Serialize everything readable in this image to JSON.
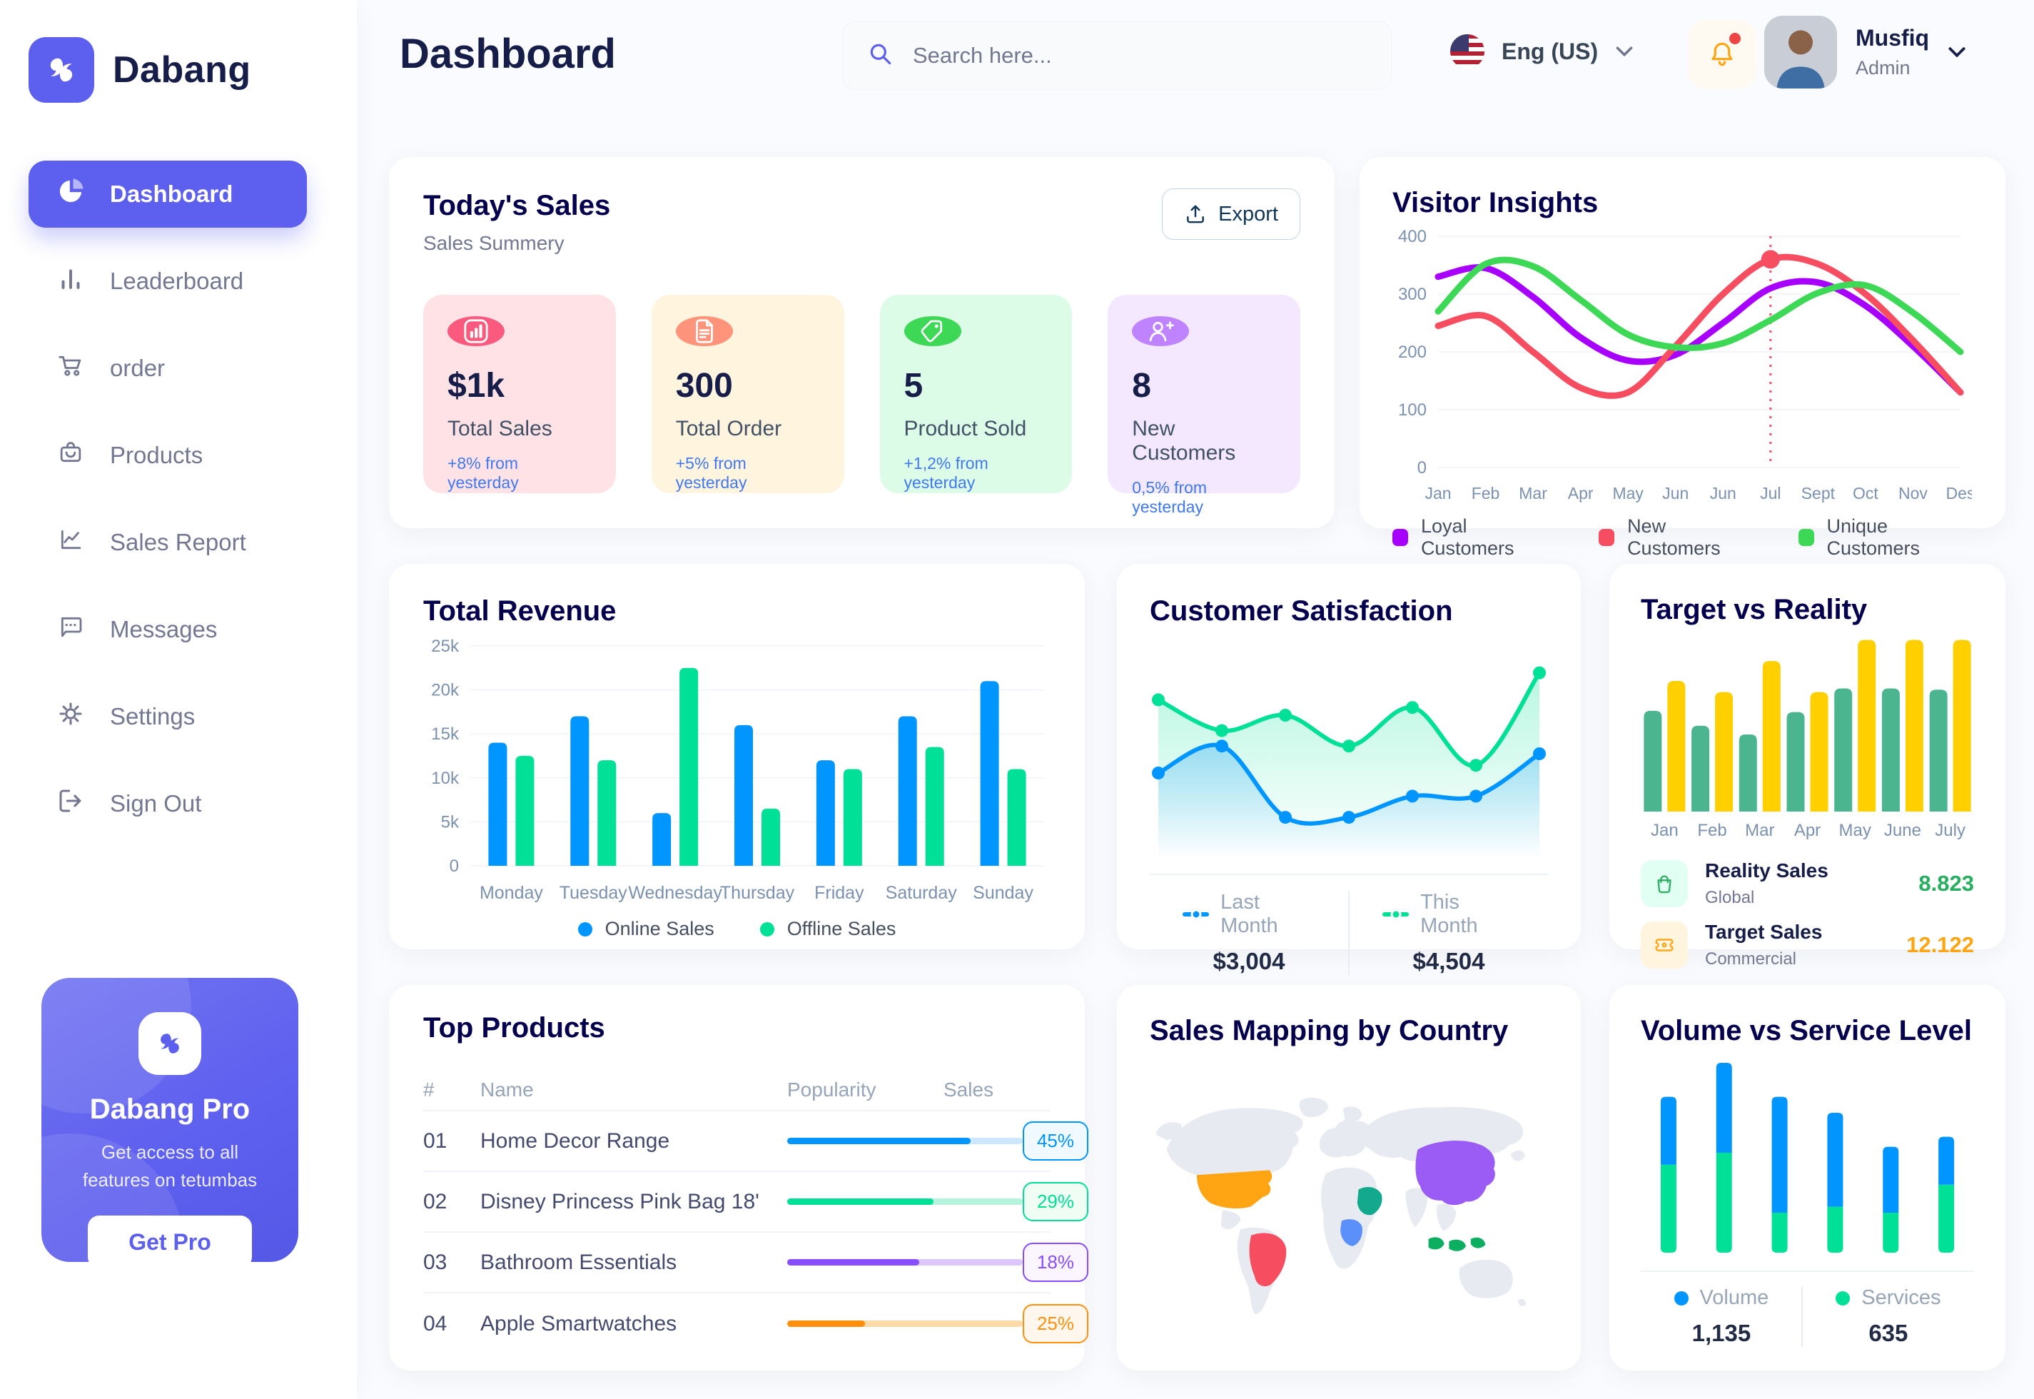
{
  "brand": {
    "logo_text": "Dabang"
  },
  "header": {
    "title": "Dashboard",
    "search_placeholder": "Search here...",
    "language": "Eng (US)",
    "user_name": "Musfiq",
    "user_role": "Admin"
  },
  "sidebar": {
    "items": [
      {
        "label": "Dashboard",
        "icon": "pie-chart-icon",
        "active": true
      },
      {
        "label": "Leaderboard",
        "icon": "bar-chart-icon",
        "active": false
      },
      {
        "label": "order",
        "icon": "cart-icon",
        "active": false
      },
      {
        "label": "Products",
        "icon": "bag-icon",
        "active": false
      },
      {
        "label": "Sales Report",
        "icon": "line-chart-icon",
        "active": false
      },
      {
        "label": "Messages",
        "icon": "message-icon",
        "active": false
      },
      {
        "label": "Settings",
        "icon": "gear-icon",
        "active": false
      },
      {
        "label": "Sign Out",
        "icon": "sign-out-icon",
        "active": false
      }
    ],
    "pro": {
      "title": "Dabang Pro",
      "subtitle": "Get access to all features on tetumbas",
      "button": "Get Pro"
    }
  },
  "todays_sales": {
    "title": "Today's Sales",
    "subtitle": "Sales Summery",
    "export_label": "Export",
    "stats": [
      {
        "value": "$1k",
        "label": "Total Sales",
        "delta": "+8% from yesterday",
        "bg": "#FFE2E5",
        "accent": "#FA5A7D",
        "icon": "chart-icon"
      },
      {
        "value": "300",
        "label": "Total Order",
        "delta": "+5% from yesterday",
        "bg": "#FFF4DE",
        "accent": "#FF947A",
        "icon": "order-icon"
      },
      {
        "value": "5",
        "label": "Product Sold",
        "delta": "+1,2% from yesterday",
        "bg": "#DCFCE7",
        "accent": "#3CD856",
        "icon": "tag-icon"
      },
      {
        "value": "8",
        "label": "New Customers",
        "delta": "0,5% from yesterday",
        "bg": "#F3E8FF",
        "accent": "#BF83FF",
        "icon": "user-plus-icon"
      }
    ]
  },
  "top_products": {
    "title": "Top Products",
    "columns": [
      "#",
      "Name",
      "Popularity",
      "Sales"
    ],
    "rows": [
      {
        "num": "01",
        "name": "Home Decor Range",
        "progress": 78,
        "sales": "45%",
        "color": "#0095FF",
        "track": "#CDE7FF",
        "badge_bg": "#F0F9FF"
      },
      {
        "num": "02",
        "name": "Disney Princess Pink Bag 18'",
        "progress": 62,
        "sales": "29%",
        "color": "#00E096",
        "track": "#B5F3DC",
        "badge_bg": "#F0FDF4"
      },
      {
        "num": "03",
        "name": "Bathroom Essentials",
        "progress": 56,
        "sales": "18%",
        "color": "#884DFF",
        "track": "#DCC8FF",
        "badge_bg": "#FAF5FF"
      },
      {
        "num": "04",
        "name": "Apple Smartwatches",
        "progress": 33,
        "sales": "25%",
        "color": "#FF8F0D",
        "track": "#FFD9A6",
        "badge_bg": "#FFF7ED"
      }
    ]
  },
  "chart_data": [
    {
      "id": "visitor_insights",
      "type": "line",
      "title": "Visitor Insights",
      "x": [
        "Jan",
        "Feb",
        "Mar",
        "Apr",
        "May",
        "Jun",
        "Jun",
        "Jul",
        "Sept",
        "Oct",
        "Nov",
        "Des"
      ],
      "ylim": [
        0,
        400
      ],
      "yticks": [
        0,
        100,
        200,
        300,
        400
      ],
      "grid": true,
      "legend_position": "bottom",
      "vline_index": 7,
      "marker": {
        "series": "New Customers",
        "index": 7
      },
      "series": [
        {
          "name": "Loyal Customers",
          "color": "#A700FF",
          "values": [
            330,
            345,
            295,
            225,
            185,
            195,
            250,
            310,
            320,
            280,
            210,
            130
          ]
        },
        {
          "name": "New Customers",
          "color": "#F64E60",
          "values": [
            245,
            262,
            200,
            138,
            130,
            210,
            300,
            360,
            352,
            300,
            220,
            130
          ]
        },
        {
          "name": "Unique Customers",
          "color": "#3CD856",
          "values": [
            270,
            352,
            348,
            290,
            230,
            208,
            215,
            255,
            302,
            315,
            268,
            200
          ]
        }
      ]
    },
    {
      "id": "total_revenue",
      "type": "bar",
      "title": "Total Revenue",
      "categories": [
        "Monday",
        "Tuesday",
        "Wednesday",
        "Thursday",
        "Friday",
        "Saturday",
        "Sunday"
      ],
      "ylim": [
        0,
        25000
      ],
      "ytick_labels": [
        "0",
        "5k",
        "10k",
        "15k",
        "20k",
        "25k"
      ],
      "grid": true,
      "legend_position": "bottom",
      "series": [
        {
          "name": "Online Sales",
          "color": "#0095FF",
          "values": [
            14000,
            17000,
            6000,
            16000,
            12000,
            17000,
            21000
          ]
        },
        {
          "name": "Offline Sales",
          "color": "#00E096",
          "values": [
            12500,
            12000,
            22500,
            6500,
            11000,
            13500,
            11000
          ]
        }
      ]
    },
    {
      "id": "customer_satisfaction",
      "type": "area",
      "title": "Customer Satisfaction",
      "ylim": [
        0,
        100
      ],
      "grid": false,
      "legend_position": "bottom",
      "series": [
        {
          "name": "Last Month",
          "color": "#0095FF",
          "total": "$3,004",
          "values": [
            40,
            54,
            17,
            17,
            28,
            28,
            50
          ]
        },
        {
          "name": "This Month",
          "color": "#00E096",
          "total": "$4,504",
          "values": [
            78,
            62,
            70,
            54,
            74,
            44,
            92
          ]
        }
      ]
    },
    {
      "id": "target_vs_reality",
      "type": "bar",
      "title": "Target vs Reality",
      "categories": [
        "Jan",
        "Feb",
        "Mar",
        "Apr",
        "May",
        "June",
        "July"
      ],
      "ylim": [
        0,
        14
      ],
      "grid": false,
      "series": [
        {
          "name": "Reality Sales",
          "color": "#4AB58E",
          "values": [
            8.1,
            6.9,
            6.2,
            8.0,
            9.9,
            9.9,
            9.8
          ]
        },
        {
          "name": "Target Sales",
          "color": "#FFCF00",
          "values": [
            10.5,
            9.6,
            12.1,
            9.6,
            13.8,
            13.8,
            13.8
          ]
        }
      ],
      "legend": [
        {
          "title": "Reality Sales",
          "subtitle": "Global",
          "value": "8.823",
          "value_color": "#27AE60",
          "icon_bg": "#E2FFF3",
          "icon": "bag-icon"
        },
        {
          "title": "Target Sales",
          "subtitle": "Commercial",
          "value": "12.122",
          "value_color": "#FFA412",
          "icon_bg": "#FFF4DE",
          "icon": "ticket-icon"
        }
      ]
    },
    {
      "id": "volume_vs_service",
      "type": "stacked-bar",
      "title": "Volume vs Service Level",
      "legend_position": "bottom",
      "series": [
        {
          "name": "Volume",
          "color": "#0095FF",
          "total": "1,135",
          "values": [
            340,
            450,
            580,
            470,
            330,
            240
          ]
        },
        {
          "name": "Services",
          "color": "#00E096",
          "total": "635",
          "values": [
            440,
            500,
            200,
            230,
            200,
            340
          ]
        }
      ]
    },
    {
      "id": "sales_mapping",
      "type": "map",
      "title": "Sales Mapping by Country",
      "base_color": "#E7EAF0",
      "countries": [
        {
          "id": "usa",
          "name": "United States",
          "color": "#FFA412"
        },
        {
          "id": "brazil",
          "name": "Brazil",
          "color": "#F64E60"
        },
        {
          "id": "china",
          "name": "China",
          "color": "#9B5CF6"
        },
        {
          "id": "saudi_arabia",
          "name": "Saudi Arabia",
          "color": "#12A98E"
        },
        {
          "id": "dr_congo",
          "name": "DR Congo",
          "color": "#5B8FF9"
        },
        {
          "id": "indonesia",
          "name": "Indonesia",
          "color": "#0CAF60"
        }
      ]
    }
  ]
}
